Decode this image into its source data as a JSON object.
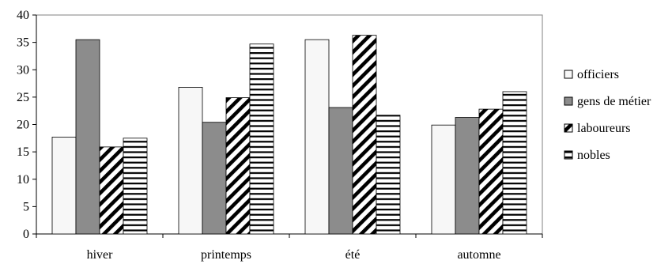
{
  "chart_data": {
    "type": "bar",
    "title": "",
    "xlabel": "",
    "ylabel": "",
    "ylim": [
      0,
      40
    ],
    "yticks": [
      0,
      5,
      10,
      15,
      20,
      25,
      30,
      35,
      40
    ],
    "grid": false,
    "legend": "right",
    "categories": [
      "hiver",
      "printemps",
      "été",
      "automne"
    ],
    "series": [
      {
        "name": "officiers",
        "values": [
          17.7,
          26.8,
          35.5,
          19.9
        ],
        "pattern": "plain-light"
      },
      {
        "name": "gens de métier",
        "values": [
          35.5,
          20.4,
          23.1,
          21.3
        ],
        "pattern": "solid-gray"
      },
      {
        "name": "laboureurs",
        "values": [
          15.9,
          24.9,
          36.3,
          22.8
        ],
        "pattern": "diagonal-stripes"
      },
      {
        "name": "nobles",
        "values": [
          17.5,
          34.7,
          21.7,
          26.0
        ],
        "pattern": "horizontal-stripes"
      }
    ],
    "colors": {
      "officiers": "#f7f7f7",
      "gens de métier": "#8c8c8c",
      "axis": "#000000"
    }
  }
}
